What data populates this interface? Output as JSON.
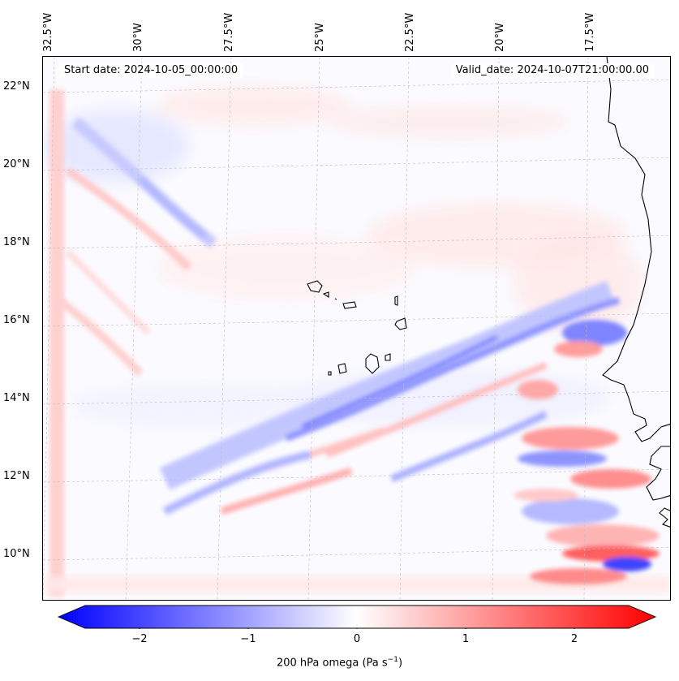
{
  "map": {
    "annotations": {
      "start": "Start date: 2024-10-05_00:00:00",
      "valid": "Valid_date: 2024-10-07T21:00:00.00"
    },
    "lon_labels": [
      "32.5°W",
      "30°W",
      "27.5°W",
      "25°W",
      "22.5°W",
      "20°W",
      "17.5°W"
    ],
    "lat_labels": [
      "22°N",
      "20°N",
      "18°N",
      "16°N",
      "14°N",
      "12°N",
      "10°N"
    ],
    "extent": {
      "lon_min": -33.0,
      "lon_max": -15.5,
      "lat_min": 9.0,
      "lat_max": 22.7
    },
    "field": "200 hPa vertical velocity (omega)",
    "colormap": "bwr"
  },
  "colorbar": {
    "label": "200 hPa omega (Pa s",
    "label_sup": "−1",
    "label_close": ")",
    "ticks": [
      "−2",
      "−1",
      "0",
      "1",
      "2"
    ],
    "tick_values": [
      -2,
      -1,
      0,
      1,
      2
    ],
    "range": [
      -2.5,
      2.5
    ],
    "extend": "both",
    "min_color": "#0000ff",
    "mid_color": "#ffffff",
    "max_color": "#ff0000"
  }
}
